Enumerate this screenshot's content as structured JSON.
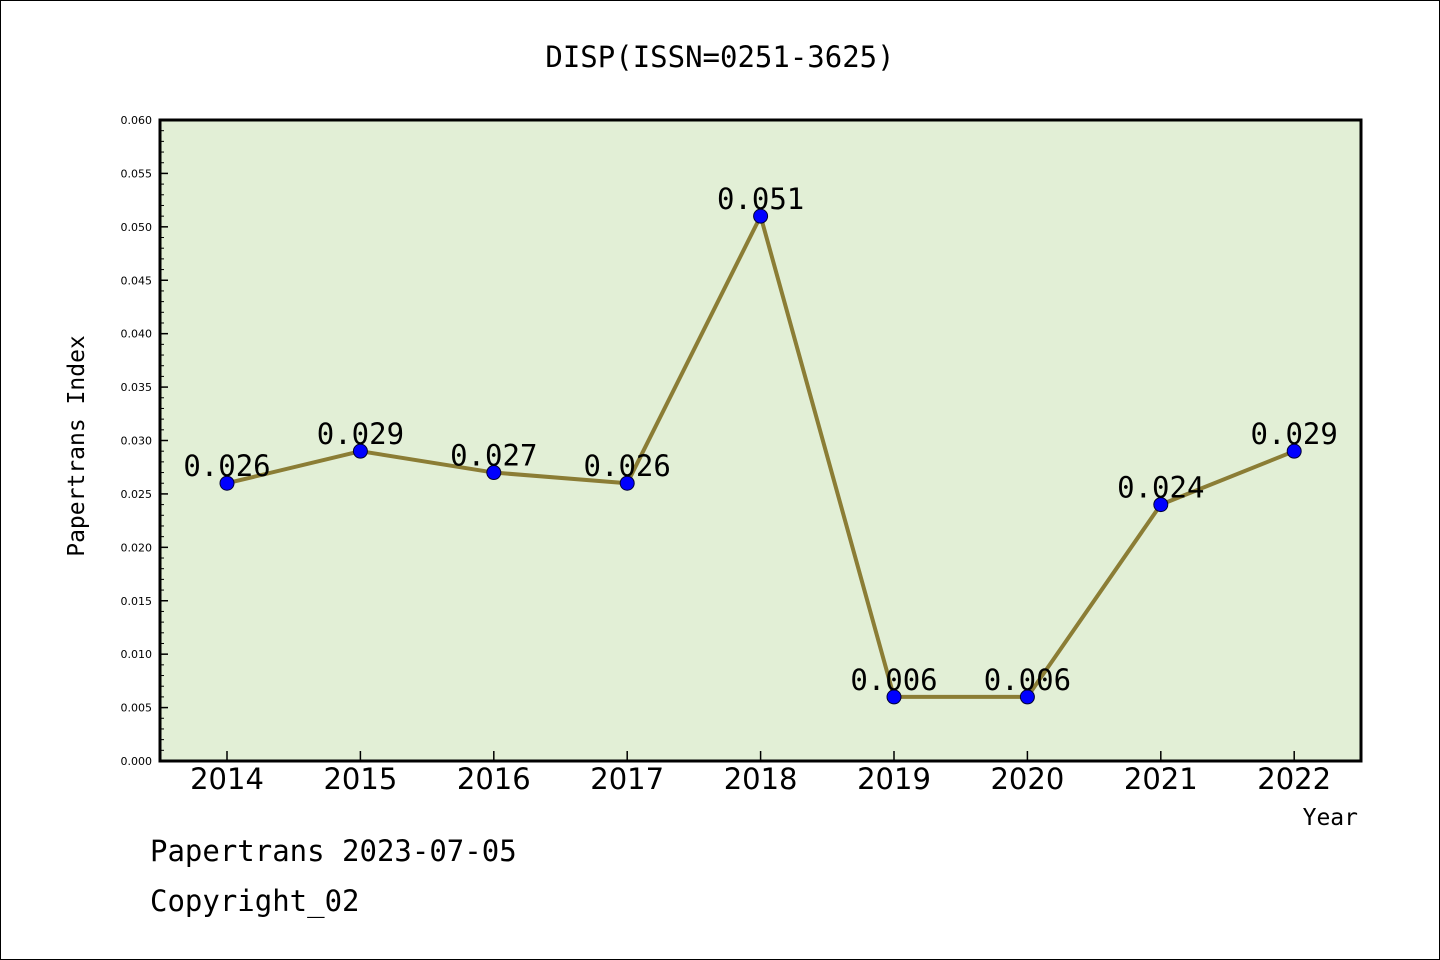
{
  "chart_data": {
    "type": "line",
    "title": "DISP(ISSN=0251-3625)",
    "xlabel": "Year",
    "ylabel": "Papertrans Index",
    "categories": [
      "2014",
      "2015",
      "2016",
      "2017",
      "2018",
      "2019",
      "2020",
      "2021",
      "2022"
    ],
    "values": [
      0.026,
      0.029,
      0.027,
      0.026,
      0.051,
      0.006,
      0.006,
      0.024,
      0.029
    ],
    "data_labels": [
      "0.026",
      "0.029",
      "0.027",
      "0.026",
      "0.051",
      "0.006",
      "0.006",
      "0.024",
      "0.029"
    ],
    "ylim": [
      0,
      0.06
    ],
    "yticks": [
      "0.000",
      "0.005",
      "0.010",
      "0.015",
      "0.020",
      "0.025",
      "0.030",
      "0.035",
      "0.040",
      "0.045",
      "0.050",
      "0.055",
      "0.060"
    ],
    "grid": false,
    "legend": "none",
    "colors": {
      "plot_background": "#e2efd6",
      "line": "#8b7d35",
      "marker": "#0000ff"
    }
  },
  "footer": {
    "line1": "Papertrans 2023-07-05",
    "line2": "Copyright_02"
  }
}
